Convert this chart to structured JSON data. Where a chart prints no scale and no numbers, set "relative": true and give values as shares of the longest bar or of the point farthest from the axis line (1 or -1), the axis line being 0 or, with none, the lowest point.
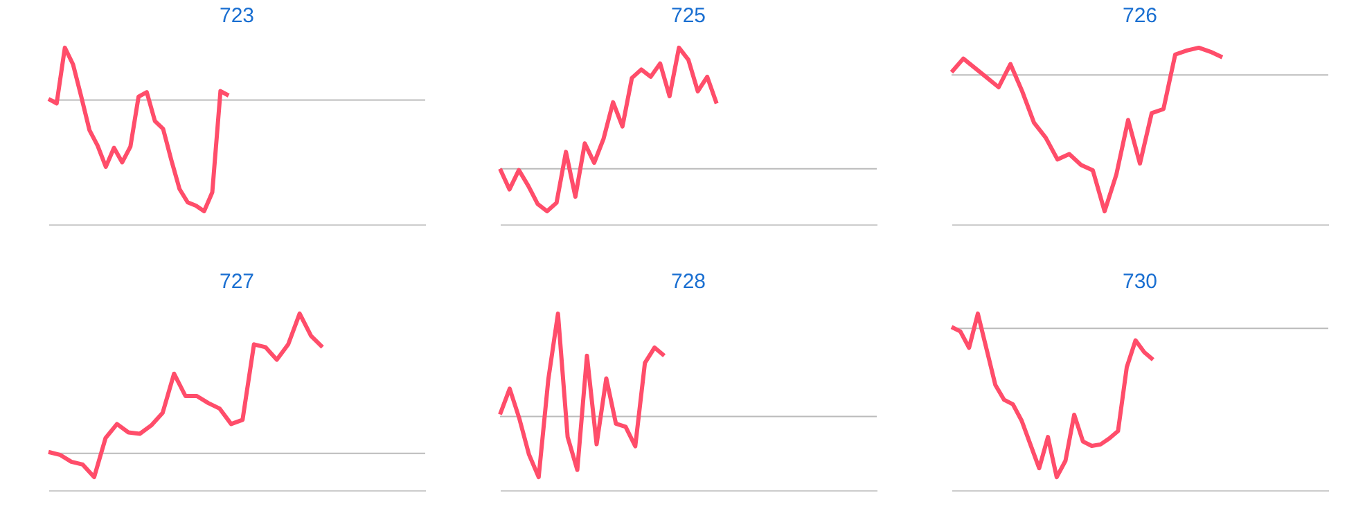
{
  "chart_data": [
    {
      "type": "line",
      "title": "723",
      "relative": true,
      "marker": "none",
      "line_style": "solid",
      "categories": [
        null,
        null,
        null,
        null,
        null,
        null,
        null,
        null,
        null,
        null,
        null,
        null,
        null,
        null,
        null,
        null,
        null,
        null,
        null,
        null,
        null,
        null,
        null,
        null,
        null,
        null,
        null,
        null,
        null,
        null,
        null,
        null,
        null,
        null,
        null,
        null,
        null,
        null,
        null,
        null,
        null,
        null,
        null,
        null,
        null,
        null,
        null
      ],
      "series": [
        {
          "color": "#ff4d6a",
          "values": [
            0.01,
            -0.03,
            0.47,
            0.32,
            0.03,
            -0.27,
            -0.41,
            -0.6,
            -0.43,
            -0.56,
            -0.42,
            0.03,
            0.07,
            -0.19,
            -0.26,
            -0.54,
            -0.8,
            -0.92,
            -0.95,
            -1,
            -0.83,
            0.08,
            0.04,
            null,
            null,
            null,
            null,
            null,
            null,
            null,
            null,
            null,
            null,
            null,
            null,
            null,
            null,
            null,
            null,
            null,
            null,
            null,
            null,
            null,
            null,
            null,
            null
          ]
        }
      ]
    },
    {
      "type": "line",
      "title": "725",
      "relative": true,
      "marker": "none",
      "line_style": "solid",
      "categories": [
        null,
        null,
        null,
        null,
        null,
        null,
        null,
        null,
        null,
        null,
        null,
        null,
        null,
        null,
        null,
        null,
        null,
        null,
        null,
        null,
        null,
        null,
        null,
        null,
        null,
        null,
        null,
        null,
        null,
        null,
        null,
        null,
        null,
        null,
        null,
        null,
        null,
        null,
        null,
        null,
        null
      ],
      "series": [
        {
          "color": "#ff4d6a",
          "values": [
            0,
            -0.17,
            -0.01,
            -0.14,
            -0.29,
            -0.35,
            -0.28,
            0.14,
            -0.23,
            0.21,
            0.05,
            0.25,
            0.55,
            0.35,
            0.75,
            0.82,
            0.76,
            0.87,
            0.6,
            1,
            0.9,
            0.64,
            0.76,
            0.54,
            null,
            null,
            null,
            null,
            null,
            null,
            null,
            null,
            null,
            null,
            null,
            null,
            null,
            null,
            null,
            null,
            null
          ]
        }
      ]
    },
    {
      "type": "line",
      "title": "726",
      "relative": true,
      "marker": "none",
      "line_style": "solid",
      "categories": [
        null,
        null,
        null,
        null,
        null,
        null,
        null,
        null,
        null,
        null,
        null,
        null,
        null,
        null,
        null,
        null,
        null,
        null,
        null,
        null,
        null,
        null,
        null,
        null,
        null,
        null,
        null,
        null,
        null,
        null,
        null,
        null,
        null
      ],
      "series": [
        {
          "color": "#ff4d6a",
          "values": [
            0.02,
            0.12,
            0.05,
            -0.02,
            -0.09,
            0.08,
            -0.12,
            -0.35,
            -0.46,
            -0.62,
            -0.58,
            -0.66,
            -0.7,
            -1,
            -0.73,
            -0.33,
            -0.65,
            -0.28,
            -0.25,
            0.15,
            0.18,
            0.2,
            0.17,
            0.13,
            null,
            null,
            null,
            null,
            null,
            null,
            null,
            null,
            null
          ]
        }
      ]
    },
    {
      "type": "line",
      "title": "727",
      "relative": true,
      "marker": "none",
      "line_style": "solid",
      "categories": [
        null,
        null,
        null,
        null,
        null,
        null,
        null,
        null,
        null,
        null,
        null,
        null,
        null,
        null,
        null,
        null,
        null,
        null,
        null,
        null,
        null,
        null,
        null,
        null,
        null,
        null,
        null,
        null,
        null,
        null,
        null,
        null,
        null,
        null
      ],
      "series": [
        {
          "color": "#ff4d6a",
          "values": [
            0.01,
            -0.01,
            -0.06,
            -0.08,
            -0.17,
            0.11,
            0.21,
            0.15,
            0.14,
            0.2,
            0.29,
            0.57,
            0.41,
            0.41,
            0.36,
            0.32,
            0.21,
            0.24,
            0.78,
            0.76,
            0.67,
            0.78,
            1,
            0.84,
            0.76,
            null,
            null,
            null,
            null,
            null,
            null,
            null,
            null,
            null
          ]
        }
      ]
    },
    {
      "type": "line",
      "title": "728",
      "relative": true,
      "marker": "none",
      "line_style": "solid",
      "categories": [
        null,
        null,
        null,
        null,
        null,
        null,
        null,
        null,
        null,
        null,
        null,
        null,
        null,
        null,
        null,
        null,
        null,
        null,
        null,
        null,
        null,
        null,
        null,
        null,
        null,
        null,
        null,
        null,
        null,
        null,
        null,
        null,
        null,
        null,
        null,
        null,
        null,
        null,
        null,
        null
      ],
      "series": [
        {
          "color": "#ff4d6a",
          "values": [
            0.02,
            0.27,
            -0.02,
            -0.37,
            -0.59,
            0.36,
            1,
            -0.2,
            -0.52,
            0.59,
            -0.27,
            0.37,
            -0.07,
            -0.1,
            -0.29,
            0.52,
            0.67,
            0.59,
            null,
            null,
            null,
            null,
            null,
            null,
            null,
            null,
            null,
            null,
            null,
            null,
            null,
            null,
            null,
            null,
            null,
            null,
            null,
            null,
            null,
            null
          ]
        }
      ]
    },
    {
      "type": "line",
      "title": "730",
      "relative": true,
      "marker": "none",
      "line_style": "solid",
      "categories": [
        null,
        null,
        null,
        null,
        null,
        null,
        null,
        null,
        null,
        null,
        null,
        null,
        null,
        null,
        null,
        null,
        null,
        null,
        null,
        null,
        null,
        null,
        null,
        null,
        null,
        null,
        null,
        null,
        null,
        null,
        null,
        null,
        null,
        null,
        null,
        null,
        null,
        null,
        null,
        null,
        null,
        null,
        null,
        null
      ],
      "series": [
        {
          "color": "#ff4d6a",
          "values": [
            0.01,
            -0.02,
            -0.13,
            0.1,
            -0.14,
            -0.38,
            -0.48,
            -0.51,
            -0.62,
            -0.78,
            -0.94,
            -0.73,
            -1,
            -0.89,
            -0.58,
            -0.76,
            -0.79,
            -0.78,
            -0.74,
            -0.69,
            -0.26,
            -0.08,
            -0.16,
            -0.21,
            null,
            null,
            null,
            null,
            null,
            null,
            null,
            null,
            null,
            null,
            null,
            null,
            null,
            null,
            null,
            null,
            null,
            null,
            null,
            null
          ]
        }
      ]
    }
  ]
}
